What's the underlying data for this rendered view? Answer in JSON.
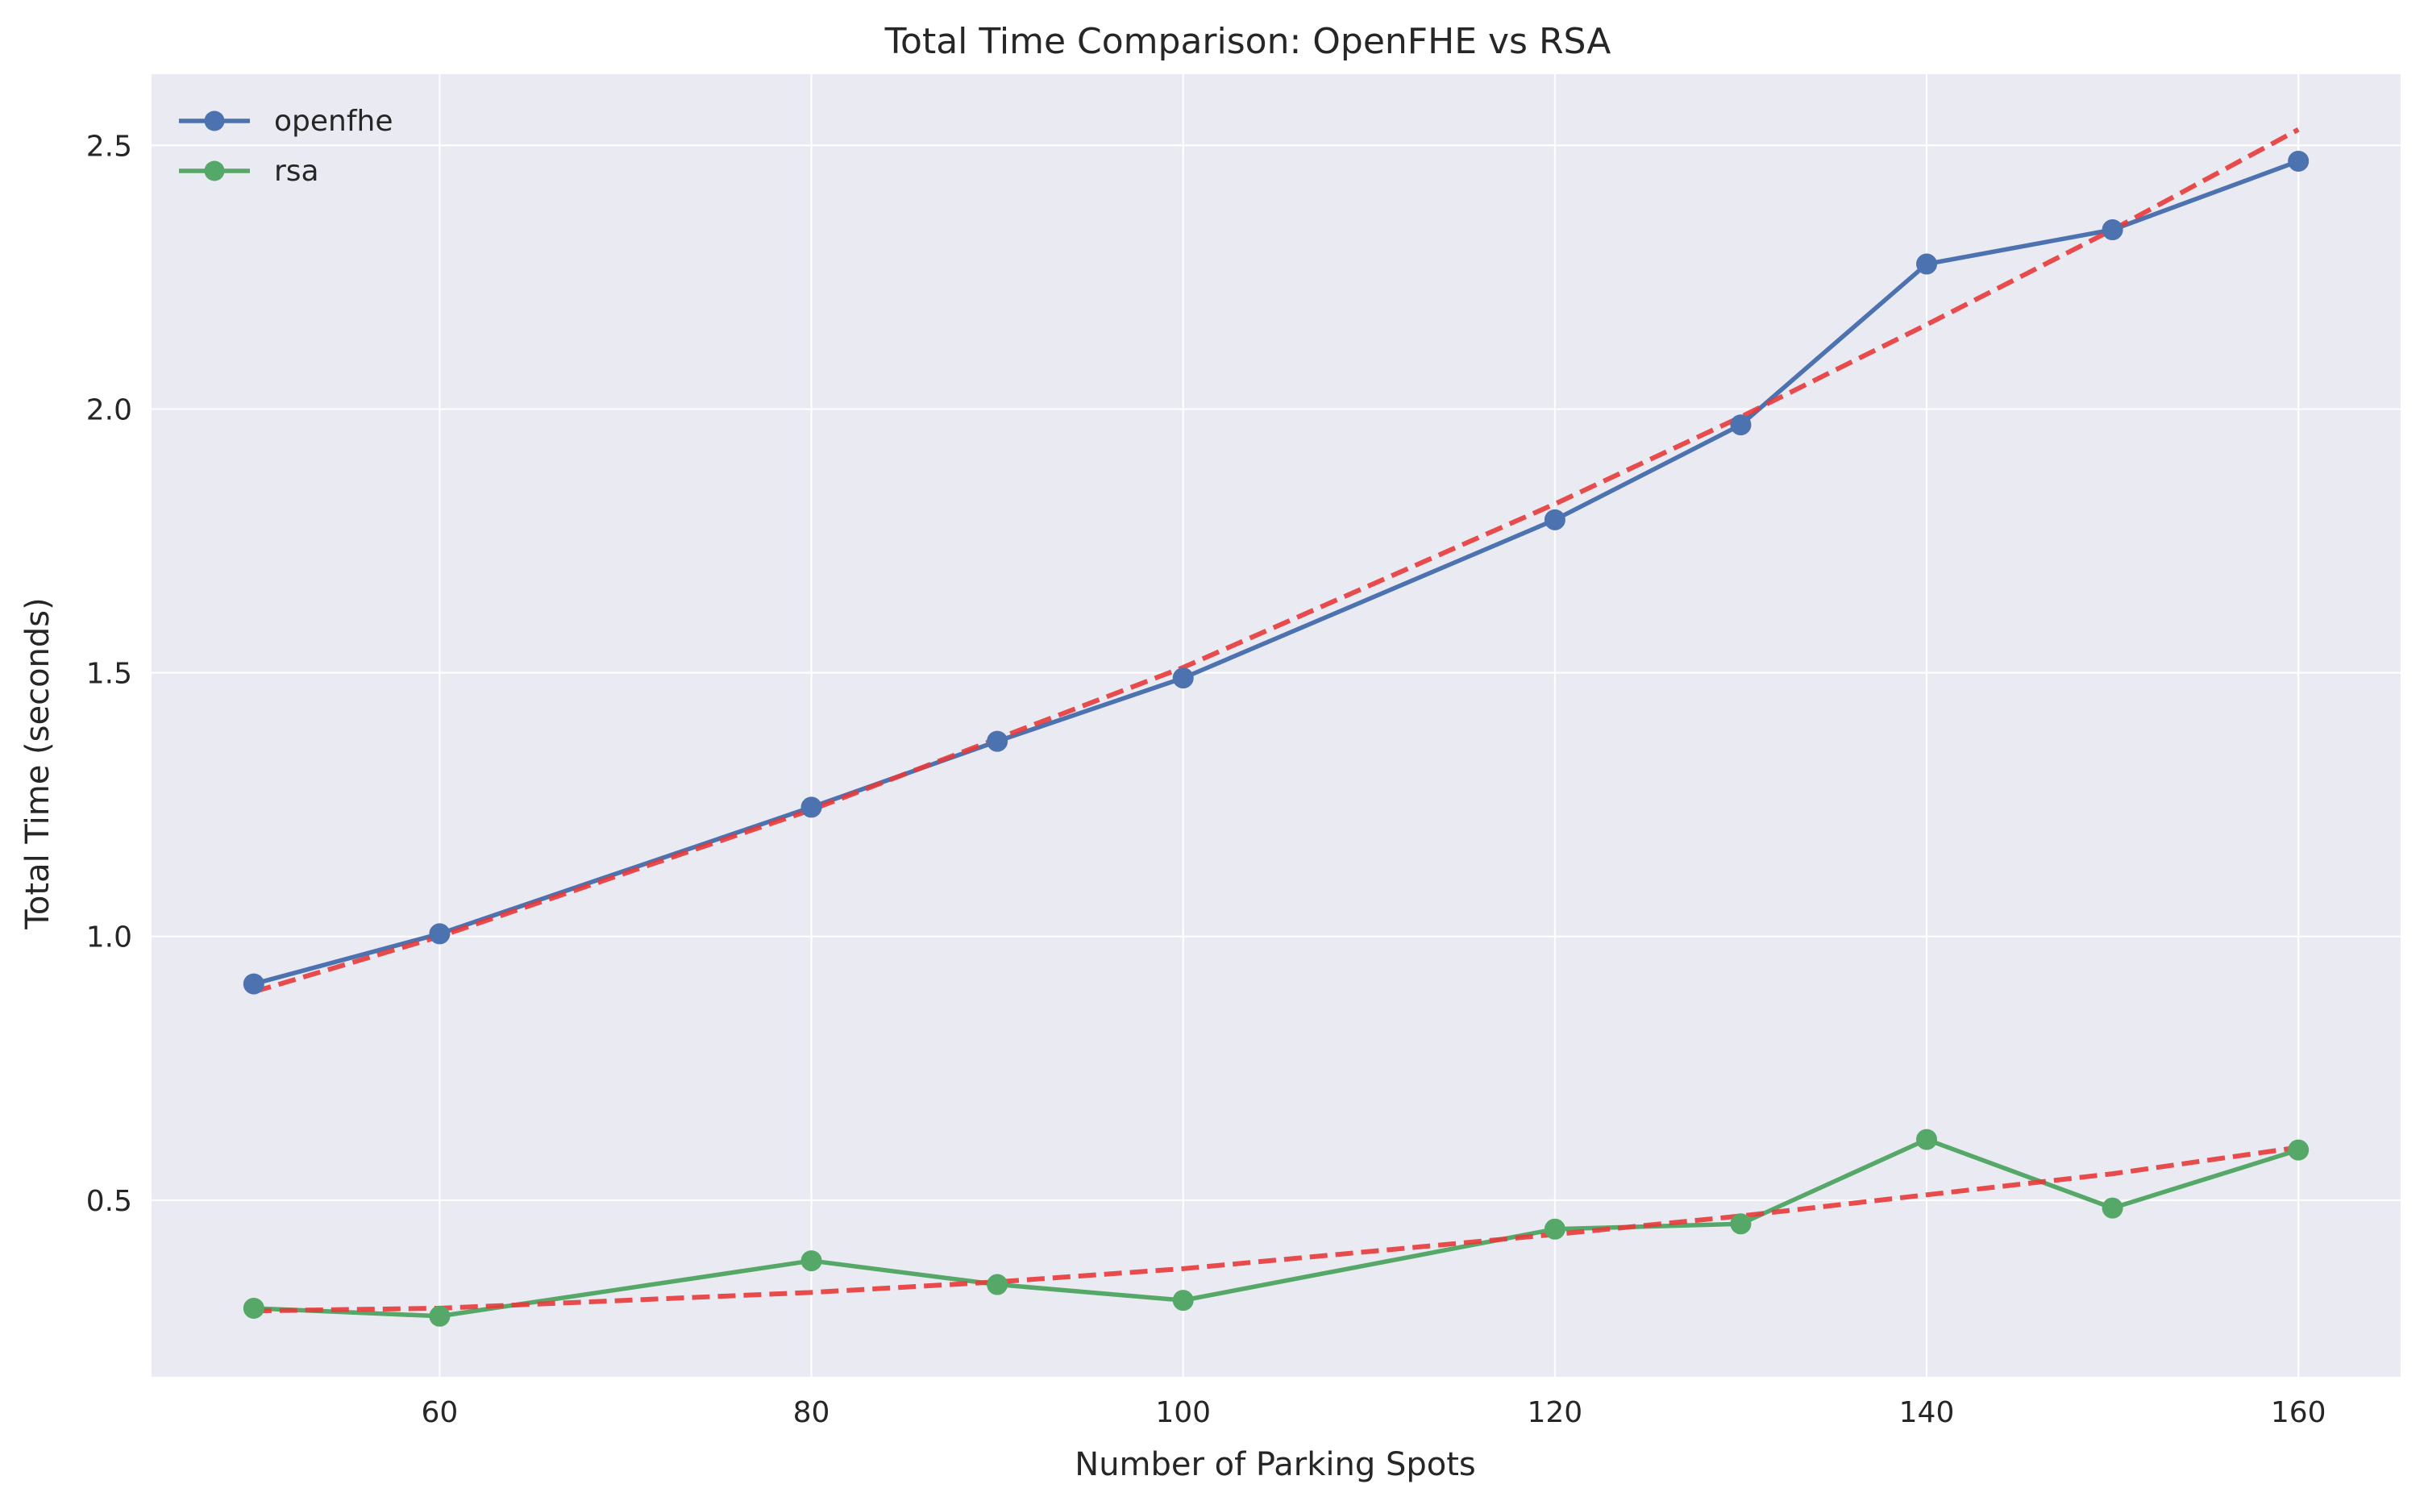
{
  "chart_data": {
    "type": "line",
    "title": "Total Time Comparison: OpenFHE vs RSA",
    "xlabel": "Number of Parking Spots",
    "ylabel": "Total Time (seconds)",
    "xlim": [
      44.5,
      165.5
    ],
    "ylim": [
      0.165,
      2.635
    ],
    "xticks": [
      60,
      80,
      100,
      120,
      140,
      160
    ],
    "yticks": [
      0.5,
      1.0,
      1.5,
      2.0,
      2.5
    ],
    "grid": true,
    "legend": "top-left",
    "x": [
      50,
      60,
      80,
      90,
      100,
      120,
      130,
      140,
      150,
      160
    ],
    "series": [
      {
        "name": "openfhe",
        "color": "#4c72b0",
        "values": [
          0.91,
          1.005,
          1.245,
          1.37,
          1.49,
          1.79,
          1.97,
          2.275,
          2.34,
          2.47
        ]
      },
      {
        "name": "rsa",
        "color": "#55a868",
        "values": [
          0.295,
          0.28,
          0.385,
          0.34,
          0.31,
          0.445,
          0.455,
          0.615,
          0.485,
          0.595
        ]
      }
    ],
    "trendlines": [
      {
        "of": "openfhe",
        "color": "#e83a3a",
        "x": [
          50,
          60,
          80,
          90,
          100,
          120,
          130,
          140,
          150,
          160
        ],
        "values": [
          0.895,
          1.0,
          1.24,
          1.375,
          1.51,
          1.82,
          1.985,
          2.16,
          2.34,
          2.53
        ]
      },
      {
        "of": "rsa",
        "color": "#e83a3a",
        "x": [
          50,
          160
        ],
        "values": [
          0.29,
          0.595
        ],
        "curve": [
          [
            50,
            0.29
          ],
          [
            60,
            0.295
          ],
          [
            80,
            0.325
          ],
          [
            90,
            0.345
          ],
          [
            100,
            0.37
          ],
          [
            120,
            0.435
          ],
          [
            130,
            0.47
          ],
          [
            140,
            0.51
          ],
          [
            150,
            0.55
          ],
          [
            160,
            0.6
          ]
        ]
      }
    ]
  }
}
